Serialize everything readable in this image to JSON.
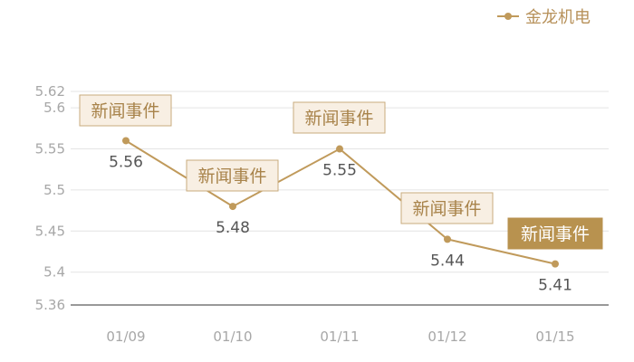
{
  "colors": {
    "series": "#c09a5b",
    "grid": "#e4e4e4",
    "axis": "#333333",
    "tick_text": "#a7a7a7",
    "value_text": "#555555",
    "event_fill": "#f8efe3",
    "event_border": "#c8ab7e",
    "event_text": "#a8834a",
    "event_active_fill": "#b8924f",
    "event_active_text": "#ffffff"
  },
  "legend": {
    "label": "金龙机电",
    "icon": "line-dot-icon",
    "position": "top-right"
  },
  "chart_data": {
    "type": "line",
    "categories": [
      "01/09",
      "01/10",
      "01/11",
      "01/12",
      "01/15"
    ],
    "series": [
      {
        "name": "金龙机电",
        "values": [
          5.56,
          5.48,
          5.55,
          5.44,
          5.41
        ]
      }
    ],
    "data_labels": [
      "5.56",
      "5.48",
      "5.55",
      "5.44",
      "5.41"
    ],
    "ylim": [
      5.36,
      5.62
    ],
    "yticks": [
      5.36,
      5.4,
      5.45,
      5.5,
      5.55,
      5.6,
      5.62
    ],
    "ytick_labels": [
      "5.36",
      "5.4",
      "5.45",
      "5.5",
      "5.55",
      "5.6",
      "5.62"
    ],
    "grid": true,
    "events": [
      {
        "label": "新闻事件",
        "category": "01/09",
        "active": false
      },
      {
        "label": "新闻事件",
        "category": "01/10",
        "active": false
      },
      {
        "label": "新闻事件",
        "category": "01/11",
        "active": false
      },
      {
        "label": "新闻事件",
        "category": "01/12",
        "active": false
      },
      {
        "label": "新闻事件",
        "category": "01/15",
        "active": true
      }
    ]
  }
}
